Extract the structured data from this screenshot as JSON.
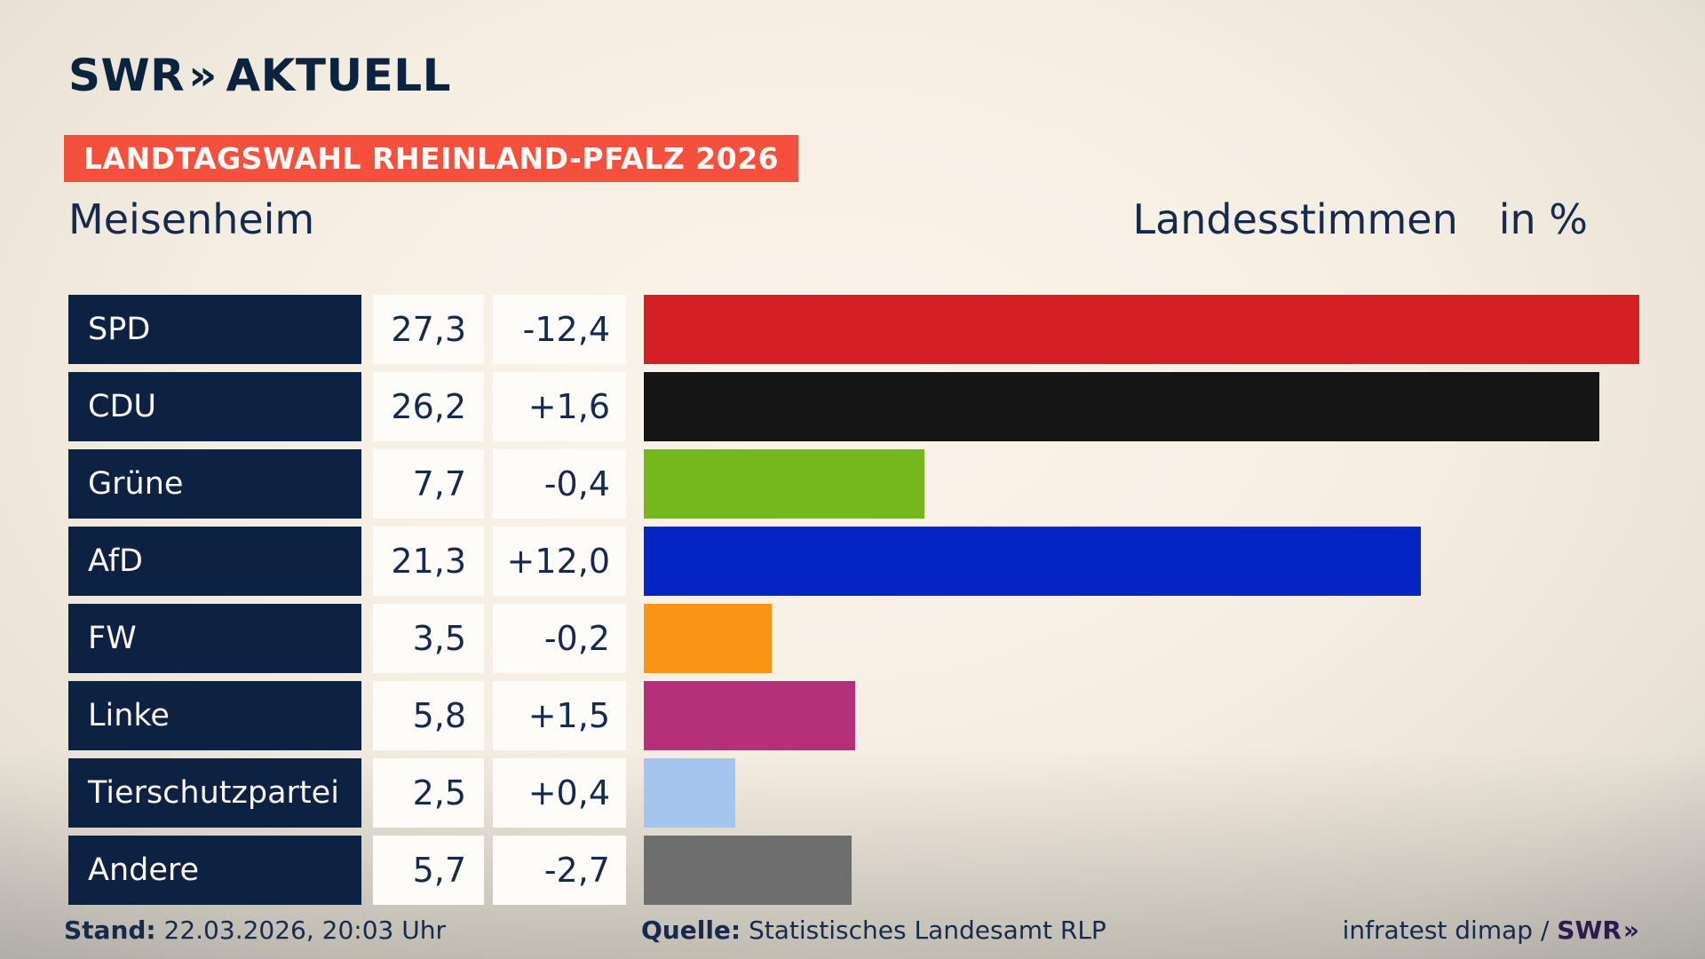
{
  "logo": {
    "swr": "SWR",
    "chevrons": "»",
    "aktuell": "AKTUELL"
  },
  "badge": {
    "label": "LANDTAGSWAHL RHEINLAND-PFALZ 2026"
  },
  "title": {
    "left": "Meisenheim",
    "right": "Landesstimmen",
    "unit": "in %"
  },
  "chart_data": {
    "type": "bar",
    "orientation": "horizontal",
    "title": "Landtagswahl Rheinland-Pfalz 2026 — Meisenheim, Landesstimmen in %",
    "unit": "%",
    "max_value": 27.3,
    "xlim": [
      0,
      27.3
    ],
    "grid": false,
    "legend": "none",
    "categories": [
      "SPD",
      "CDU",
      "Grüne",
      "AfD",
      "FW",
      "Linke",
      "Tierschutzpartei",
      "Andere"
    ],
    "values": [
      27.3,
      26.2,
      7.7,
      21.3,
      3.5,
      5.8,
      2.5,
      5.7
    ],
    "display_values": [
      "27,3",
      "26,2",
      "7,7",
      "21,3",
      "3,5",
      "5,8",
      "2,5",
      "5,7"
    ],
    "changes": [
      "-12,4",
      "+1,6",
      "-0,4",
      "+12,0",
      "-0,2",
      "+1,5",
      "+0,4",
      "-2,7"
    ],
    "colors": [
      "#d42025",
      "#151515",
      "#74b81e",
      "#0524c4",
      "#f99414",
      "#b43078",
      "#a6c5ee",
      "#6e6e6e"
    ]
  },
  "footer": {
    "stand_label": "Stand:",
    "stand_value": "22.03.2026, 20:03 Uhr",
    "quelle_label": "Quelle:",
    "quelle_value": "Statistisches Landesamt RLP",
    "credit_text": "infratest dimap / ",
    "credit_brand": "SWR",
    "credit_chevrons": "»"
  },
  "ui_colors": {
    "navy": "#0d2142",
    "text-navy": "#152a4e",
    "badge-red": "#f4503d",
    "box-white": "#fdfcf8",
    "label-text": "#faf6ef",
    "swr-purple": "#2e1a52"
  }
}
